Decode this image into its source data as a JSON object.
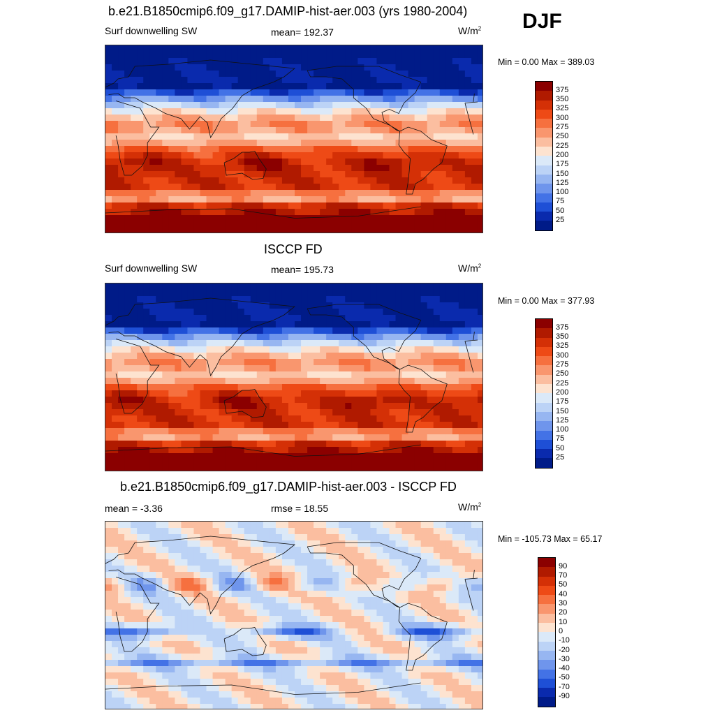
{
  "season": "DJF",
  "units": "W/m",
  "units_sup": "2",
  "panels": [
    {
      "title": "b.e21.B1850cmip6.f09_g17.DAMIP-hist-aer.003 (yrs 1980-2004)",
      "left": "Surf downwelling SW",
      "center": "mean= 192.37",
      "minmax": "Min =   0.00 Max = 389.03",
      "kind": "abs",
      "variant": 0,
      "colorbar": [
        "375",
        "350",
        "325",
        "300",
        "275",
        "250",
        "225",
        "200",
        "175",
        "150",
        "125",
        "100",
        "75",
        "50",
        "25"
      ]
    },
    {
      "title": "ISCCP FD",
      "left": "Surf downwelling SW",
      "center": "mean= 195.73",
      "minmax": "Min =   0.00 Max = 377.93",
      "kind": "abs",
      "variant": 1,
      "colorbar": [
        "375",
        "350",
        "325",
        "300",
        "275",
        "250",
        "225",
        "200",
        "175",
        "150",
        "125",
        "100",
        "75",
        "50",
        "25"
      ]
    },
    {
      "title": "b.e21.B1850cmip6.f09_g17.DAMIP-hist-aer.003 - ISCCP FD",
      "left": "mean =  -3.36",
      "center": "rmse =  18.55",
      "minmax": "Min = -105.73 Max =  65.17",
      "kind": "diff",
      "variant": 2,
      "colorbar": [
        "90",
        "70",
        "50",
        "40",
        "30",
        "20",
        "10",
        "0",
        "-10",
        "-20",
        "-30",
        "-40",
        "-50",
        "-70",
        "-90"
      ]
    }
  ],
  "colors": {
    "abs": [
      "#8b0000",
      "#b01a00",
      "#d43006",
      "#ee4a16",
      "#f6703f",
      "#f9966e",
      "#fbbea0",
      "#fde3d0",
      "#dbe9f8",
      "#bcd3f6",
      "#97b6f1",
      "#6f95ec",
      "#4372e6",
      "#1e4fd6",
      "#0a2aad",
      "#001b88"
    ],
    "diff": [
      "#8b0000",
      "#b01a00",
      "#d43006",
      "#ee4a16",
      "#f6703f",
      "#f9966e",
      "#fbbea0",
      "#fde3d0",
      "#dbe9f8",
      "#bcd3f6",
      "#97b6f1",
      "#6f95ec",
      "#4372e6",
      "#1e4fd6",
      "#0a2aad",
      "#001b88"
    ]
  }
}
